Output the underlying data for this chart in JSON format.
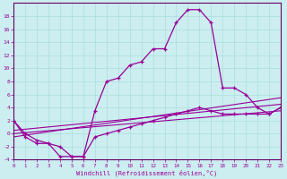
{
  "xlabel": "Windchill (Refroidissement éolien,°C)",
  "background_color": "#cceef0",
  "grid_color": "#aadddd",
  "line_color": "#990099",
  "spine_color": "#660066",
  "xlim": [
    0,
    23
  ],
  "ylim": [
    -4,
    20
  ],
  "yticks": [
    -4,
    -2,
    0,
    2,
    4,
    6,
    8,
    10,
    12,
    14,
    16,
    18
  ],
  "xticks": [
    0,
    1,
    2,
    3,
    4,
    5,
    6,
    7,
    8,
    9,
    10,
    11,
    12,
    13,
    14,
    15,
    16,
    17,
    18,
    19,
    20,
    21,
    22,
    23
  ],
  "temp_x": [
    0,
    1,
    2,
    3,
    4,
    5,
    6,
    7,
    8,
    9,
    10,
    11,
    12,
    13,
    14,
    15,
    16,
    17,
    18,
    19,
    20,
    21,
    22,
    23
  ],
  "temp_y": [
    2,
    0,
    -1,
    -1.5,
    -2,
    -3.5,
    -3.5,
    3.5,
    8,
    8.5,
    10.5,
    11,
    13,
    13,
    17,
    19,
    19,
    17,
    7,
    7,
    6,
    4,
    3,
    4
  ],
  "wc_x": [
    0,
    1,
    2,
    3,
    4,
    5,
    6,
    7,
    8,
    9,
    10,
    11,
    12,
    13,
    14,
    15,
    16,
    17,
    18,
    19,
    20,
    21,
    22,
    23
  ],
  "wc_y": [
    2,
    -0.5,
    -1.5,
    -1.5,
    -3.5,
    -3.5,
    -3.5,
    -0.5,
    0,
    0.5,
    1,
    1.5,
    2,
    2.5,
    3,
    3.5,
    4,
    3.5,
    3,
    3,
    3,
    3,
    3,
    4
  ],
  "line1_x": [
    0,
    23
  ],
  "line1_y": [
    0.5,
    4.5
  ],
  "line2_x": [
    0,
    23
  ],
  "line2_y": [
    0,
    3.5
  ],
  "line3_x": [
    0,
    23
  ],
  "line3_y": [
    -0.5,
    5.5
  ]
}
